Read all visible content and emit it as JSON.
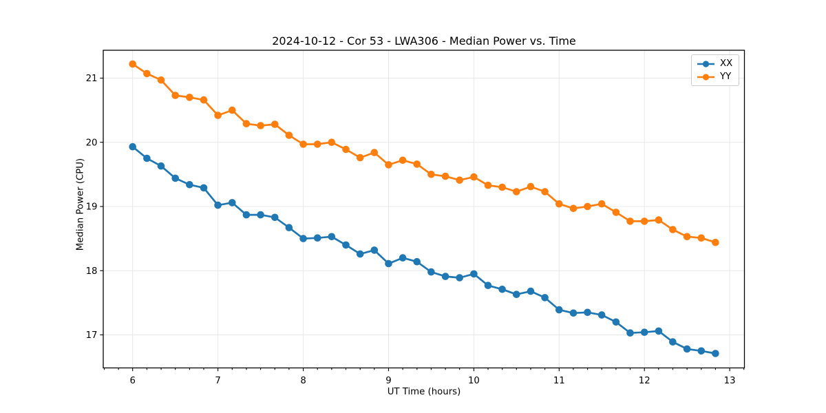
{
  "chart_data": {
    "type": "line",
    "title": "2024-10-12 - Cor 53 - LWA306 - Median Power vs. Time",
    "xlabel": "UT Time (hours)",
    "ylabel": "Median Power (CPU)",
    "xlim": [
      5.655,
      13.173
    ],
    "ylim": [
      16.485,
      21.434
    ],
    "xticks": [
      6,
      7,
      8,
      9,
      10,
      11,
      12,
      13
    ],
    "yticks": [
      17,
      18,
      19,
      20,
      21
    ],
    "x_minor_step": 0.16667,
    "grid": true,
    "grid_color": "#e8e8e8",
    "spine_color": "#000000",
    "legend_position": "upper right",
    "marker": "circle",
    "x": [
      6.0,
      6.167,
      6.333,
      6.5,
      6.667,
      6.833,
      7.0,
      7.167,
      7.333,
      7.5,
      7.667,
      7.833,
      8.0,
      8.167,
      8.333,
      8.5,
      8.667,
      8.833,
      9.0,
      9.167,
      9.333,
      9.5,
      9.667,
      9.833,
      10.0,
      10.167,
      10.333,
      10.5,
      10.667,
      10.833,
      11.0,
      11.167,
      11.333,
      11.5,
      11.667,
      11.833,
      12.0,
      12.167,
      12.333,
      12.5,
      12.667,
      12.833
    ],
    "series": [
      {
        "name": "XX",
        "color": "#1f77b4",
        "values": [
          19.93,
          19.75,
          19.63,
          19.44,
          19.34,
          19.29,
          19.02,
          19.06,
          18.87,
          18.87,
          18.83,
          18.67,
          18.5,
          18.51,
          18.53,
          18.4,
          18.26,
          18.32,
          18.11,
          18.2,
          18.14,
          17.98,
          17.91,
          17.89,
          17.95,
          17.77,
          17.71,
          17.63,
          17.68,
          17.58,
          17.39,
          17.34,
          17.35,
          17.31,
          17.2,
          17.03,
          17.04,
          17.06,
          16.89,
          16.78,
          16.75,
          16.71
        ]
      },
      {
        "name": "YY",
        "color": "#ff7f0e",
        "values": [
          21.22,
          21.07,
          20.97,
          20.73,
          20.7,
          20.66,
          20.42,
          20.5,
          20.29,
          20.26,
          20.28,
          20.11,
          19.97,
          19.97,
          20.0,
          19.89,
          19.76,
          19.84,
          19.65,
          19.72,
          19.66,
          19.5,
          19.47,
          19.41,
          19.46,
          19.33,
          19.3,
          19.23,
          19.31,
          19.23,
          19.04,
          18.97,
          19.0,
          19.04,
          18.91,
          18.77,
          18.77,
          18.79,
          18.64,
          18.53,
          18.51,
          18.44
        ]
      }
    ]
  }
}
